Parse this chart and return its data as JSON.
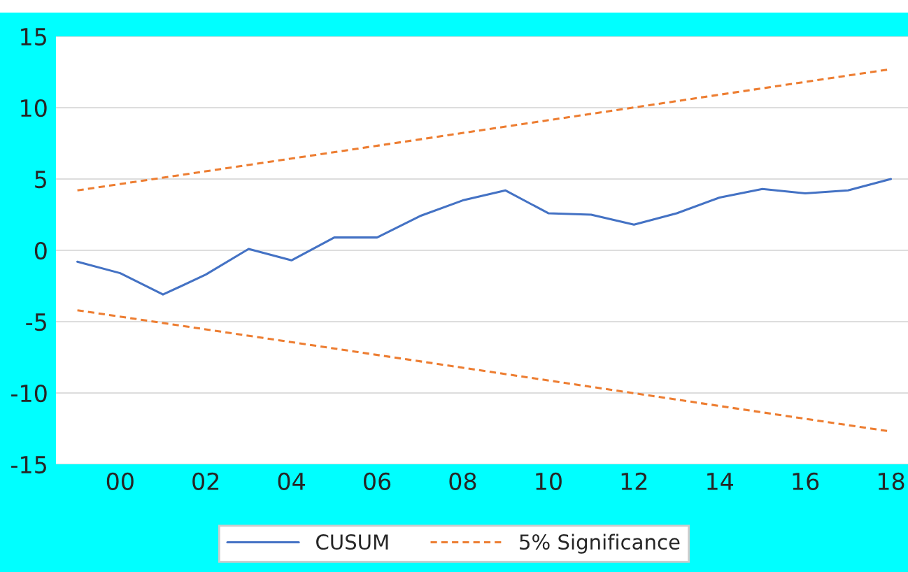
{
  "chart_data": {
    "type": "line",
    "series": [
      {
        "name": "CUSUM",
        "color": "#4472c4",
        "line_style": "solid",
        "x": [
          1999,
          2000,
          2001,
          2002,
          2003,
          2004,
          2005,
          2006,
          2007,
          2008,
          2009,
          2010,
          2011,
          2012,
          2013,
          2014,
          2015,
          2016,
          2017,
          2018
        ],
        "values": [
          -0.8,
          -1.6,
          -3.1,
          -1.7,
          0.1,
          -0.7,
          0.9,
          0.9,
          2.4,
          3.5,
          4.2,
          2.6,
          2.5,
          1.8,
          2.6,
          3.7,
          4.3,
          4.0,
          4.2,
          5.0
        ]
      },
      {
        "name": "5% Significance",
        "color": "#ed7d31",
        "line_style": "dashed",
        "x": [
          1999,
          2018
        ],
        "values": [
          4.2,
          12.7
        ]
      },
      {
        "color": "#ed7d31",
        "line_style": "dashed",
        "x": [
          1999,
          2018
        ],
        "values": [
          -4.2,
          -12.7
        ]
      }
    ],
    "xlim": [
      1998.5,
      2018.4
    ],
    "xticks": [
      {
        "value": 2000,
        "label": "00"
      },
      {
        "value": 2002,
        "label": "02"
      },
      {
        "value": 2004,
        "label": "04"
      },
      {
        "value": 2006,
        "label": "06"
      },
      {
        "value": 2008,
        "label": "08"
      },
      {
        "value": 2010,
        "label": "10"
      },
      {
        "value": 2012,
        "label": "12"
      },
      {
        "value": 2014,
        "label": "14"
      },
      {
        "value": 2016,
        "label": "16"
      },
      {
        "value": 2018,
        "label": "18"
      }
    ],
    "ylim": [
      -15,
      15
    ],
    "yticks": [
      -15,
      -10,
      -5,
      0,
      5,
      10,
      15
    ],
    "grid": "y",
    "legend": "bottom",
    "marker": "none"
  }
}
